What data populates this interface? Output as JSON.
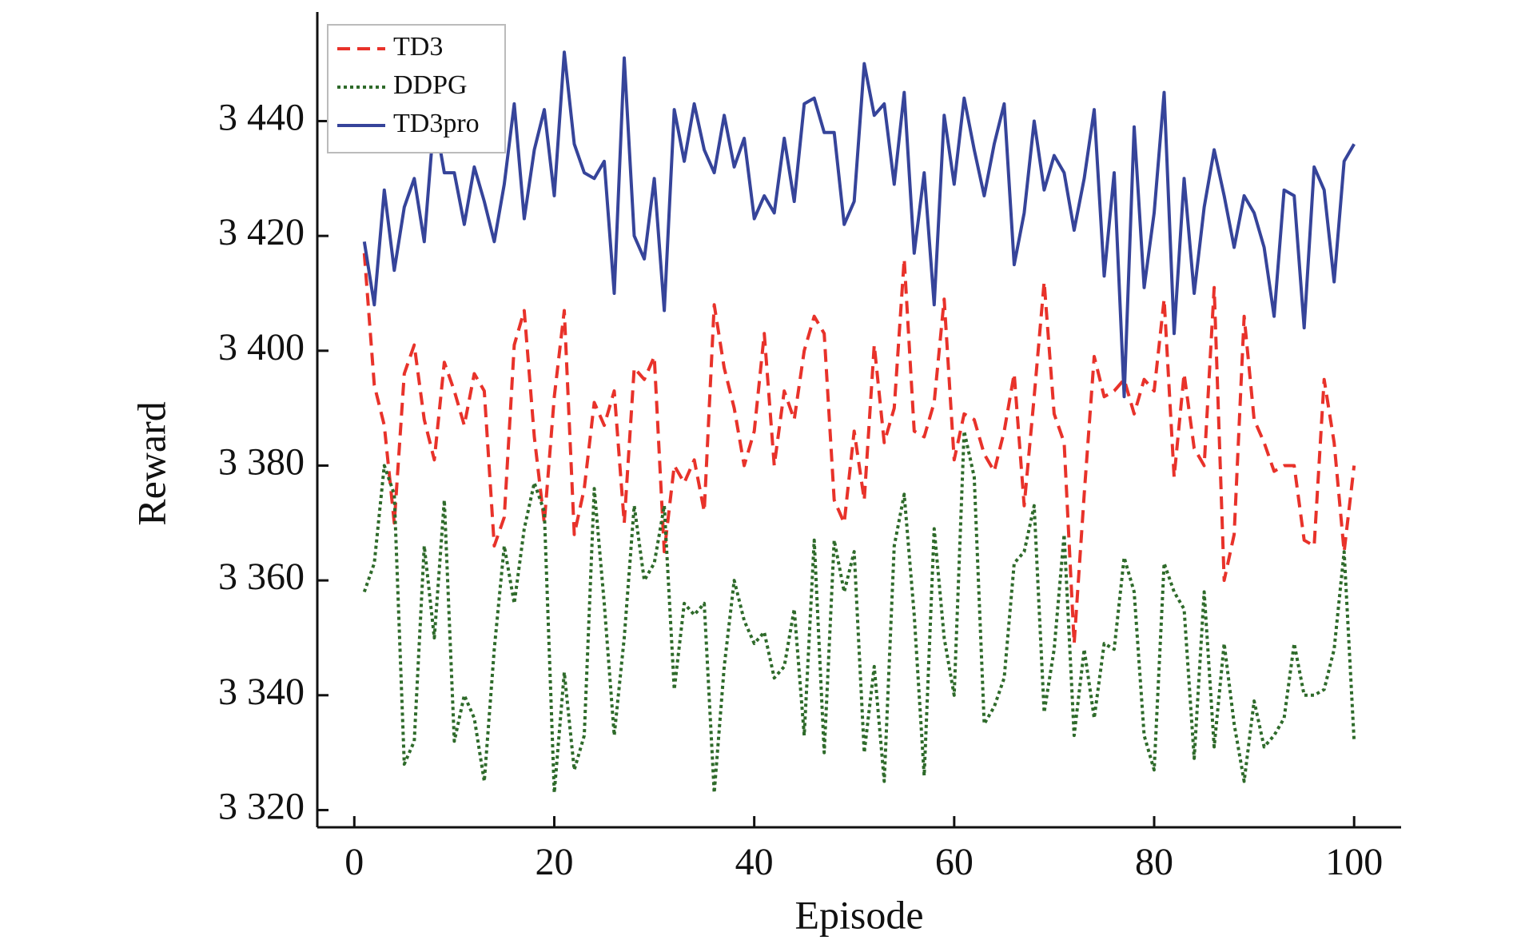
{
  "chart_data": {
    "type": "line",
    "x_label": "Episode",
    "y_label": "Reward",
    "x": [
      1,
      2,
      3,
      4,
      5,
      6,
      7,
      8,
      9,
      10,
      11,
      12,
      13,
      14,
      15,
      16,
      17,
      18,
      19,
      20,
      21,
      22,
      23,
      24,
      25,
      26,
      27,
      28,
      29,
      30,
      31,
      32,
      33,
      34,
      35,
      36,
      37,
      38,
      39,
      40,
      41,
      42,
      43,
      44,
      45,
      46,
      47,
      48,
      49,
      50,
      51,
      52,
      53,
      54,
      55,
      56,
      57,
      58,
      59,
      60,
      61,
      62,
      63,
      64,
      65,
      66,
      67,
      68,
      69,
      70,
      71,
      72,
      73,
      74,
      75,
      76,
      77,
      78,
      79,
      80,
      81,
      82,
      83,
      84,
      85,
      86,
      87,
      88,
      89,
      90,
      91,
      92,
      93,
      94,
      95,
      96,
      97,
      98,
      99,
      100
    ],
    "series": [
      {
        "name": "TD3",
        "color": "#e8322a",
        "dash": "dashed",
        "values": [
          3417,
          3394,
          3387,
          3370,
          3396,
          3401,
          3388,
          3381,
          3398,
          3393,
          3387,
          3396,
          3393,
          3366,
          3371,
          3401,
          3407,
          3385,
          3370,
          3392,
          3407,
          3368,
          3376,
          3391,
          3387,
          3393,
          3370,
          3397,
          3395,
          3399,
          3365,
          3380,
          3377,
          3381,
          3372,
          3408,
          3397,
          3390,
          3380,
          3386,
          3403,
          3380,
          3393,
          3388,
          3400,
          3406,
          3403,
          3374,
          3370,
          3386,
          3374,
          3401,
          3384,
          3390,
          3416,
          3386,
          3385,
          3391,
          3409,
          3381,
          3389,
          3388,
          3382,
          3379,
          3386,
          3396,
          3373,
          3392,
          3412,
          3389,
          3384,
          3349,
          3375,
          3399,
          3392,
          3393,
          3395,
          3389,
          3395,
          3393,
          3409,
          3378,
          3396,
          3383,
          3380,
          3411,
          3360,
          3368,
          3406,
          3388,
          3384,
          3379,
          3380,
          3380,
          3367,
          3366,
          3395,
          3384,
          3365,
          3380
        ]
      },
      {
        "name": "DDPG",
        "color": "#2e6a2a",
        "dash": "dotted",
        "values": [
          3358,
          3363,
          3380,
          3375,
          3328,
          3332,
          3366,
          3350,
          3374,
          3332,
          3340,
          3336,
          3325,
          3348,
          3366,
          3356,
          3369,
          3377,
          3372,
          3323,
          3344,
          3327,
          3333,
          3376,
          3356,
          3333,
          3350,
          3373,
          3360,
          3363,
          3373,
          3341,
          3356,
          3354,
          3356,
          3323,
          3345,
          3360,
          3353,
          3349,
          3351,
          3343,
          3345,
          3355,
          3333,
          3367,
          3330,
          3367,
          3358,
          3365,
          3330,
          3345,
          3325,
          3366,
          3375,
          3354,
          3326,
          3369,
          3350,
          3340,
          3386,
          3378,
          3335,
          3338,
          3343,
          3363,
          3365,
          3373,
          3337,
          3348,
          3368,
          3333,
          3348,
          3336,
          3349,
          3348,
          3364,
          3358,
          3333,
          3327,
          3363,
          3358,
          3355,
          3329,
          3358,
          3331,
          3349,
          3335,
          3325,
          3339,
          3331,
          3333,
          3336,
          3349,
          3340,
          3340,
          3341,
          3348,
          3365,
          3332
        ]
      },
      {
        "name": "TD3pro",
        "color": "#36449a",
        "dash": "solid",
        "values": [
          3419,
          3408,
          3428,
          3414,
          3425,
          3430,
          3419,
          3441,
          3431,
          3431,
          3422,
          3432,
          3426,
          3419,
          3429,
          3443,
          3423,
          3435,
          3442,
          3427,
          3452,
          3436,
          3431,
          3430,
          3433,
          3410,
          3451,
          3420,
          3416,
          3430,
          3407,
          3442,
          3433,
          3443,
          3435,
          3431,
          3441,
          3432,
          3437,
          3423,
          3427,
          3424,
          3437,
          3426,
          3443,
          3444,
          3438,
          3438,
          3422,
          3426,
          3450,
          3441,
          3443,
          3429,
          3445,
          3417,
          3431,
          3408,
          3441,
          3429,
          3444,
          3435,
          3427,
          3436,
          3443,
          3415,
          3424,
          3440,
          3428,
          3434,
          3431,
          3421,
          3430,
          3442,
          3413,
          3431,
          3392,
          3439,
          3411,
          3424,
          3445,
          3403,
          3430,
          3410,
          3425,
          3435,
          3427,
          3418,
          3427,
          3424,
          3418,
          3406,
          3428,
          3427,
          3404,
          3432,
          3428,
          3412,
          3433,
          3436
        ]
      }
    ],
    "xlim": [
      -3.7,
      104.7
    ],
    "xticks": [
      0,
      20,
      40,
      60,
      80,
      100
    ],
    "ylim": [
      3317,
      3459
    ],
    "yticks": [
      {
        "value": 3320,
        "label": "3 320"
      },
      {
        "value": 3340,
        "label": "3 340"
      },
      {
        "value": 3360,
        "label": "3 360"
      },
      {
        "value": 3380,
        "label": "3 380"
      },
      {
        "value": 3400,
        "label": "3 400"
      },
      {
        "value": 3420,
        "label": "3 420"
      },
      {
        "value": 3440,
        "label": "3 440"
      }
    ],
    "legend": "upper left",
    "grid": false
  }
}
